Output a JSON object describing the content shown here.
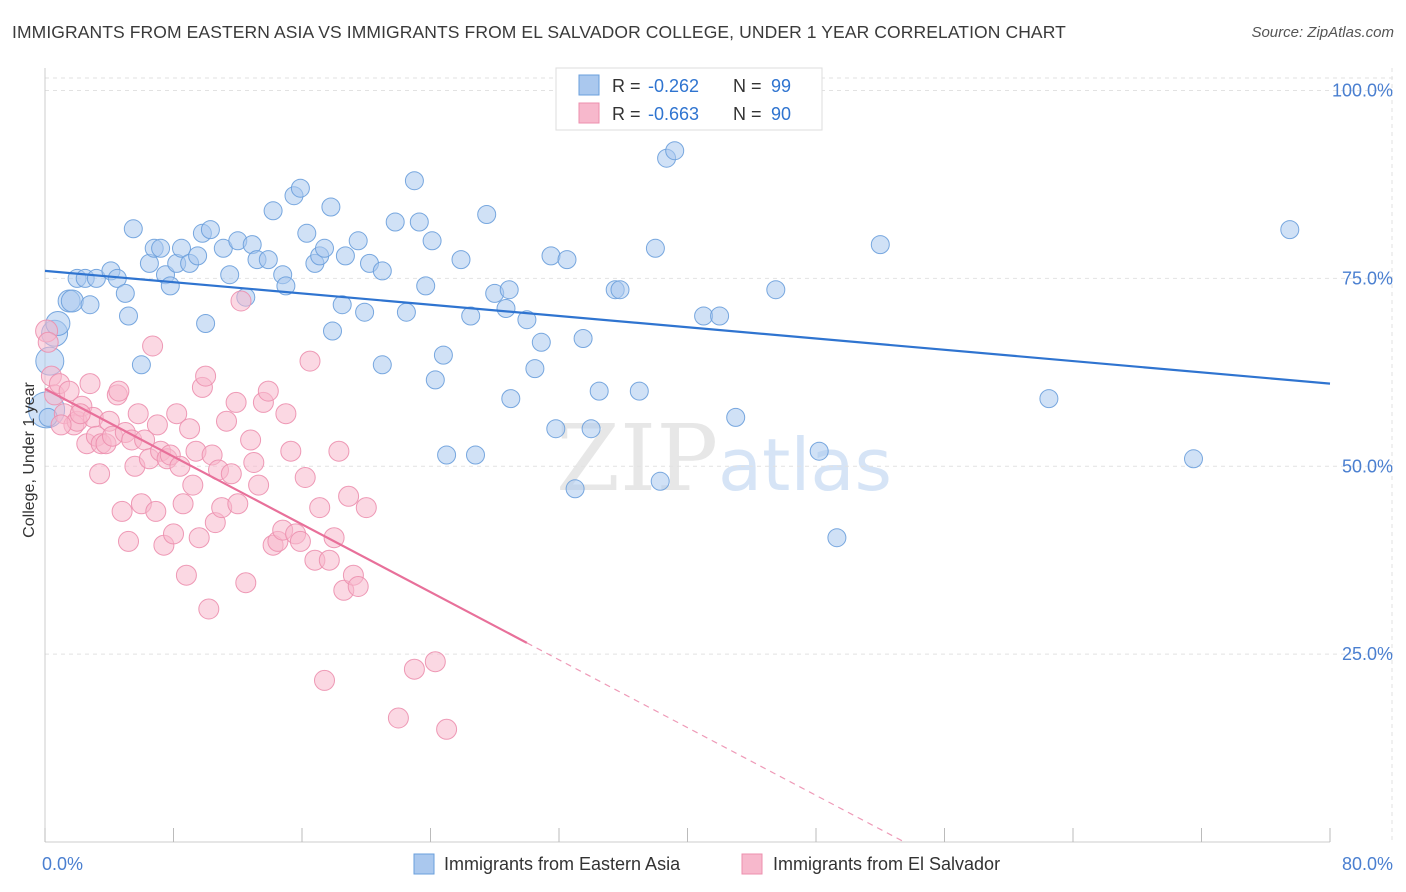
{
  "title": "IMMIGRANTS FROM EASTERN ASIA VS IMMIGRANTS FROM EL SALVADOR COLLEGE, UNDER 1 YEAR CORRELATION CHART",
  "source": "Source: ZipAtlas.com",
  "watermark": {
    "zip": "ZIP",
    "atlas": "atlas"
  },
  "colors": {
    "blue_fill": "#aac8ee",
    "blue_stroke": "#6a9fdc",
    "blue_line": "#2f74d0",
    "pink_fill": "#f7b8cc",
    "pink_stroke": "#ec8fae",
    "pink_line": "#e8709a",
    "axis_label": "#4a7fd0",
    "grid": "#e2e2e2"
  },
  "legend_top": [
    {
      "r_label": "R = ",
      "r_value": "-0.262",
      "n_label": "N = ",
      "n_value": "99"
    },
    {
      "r_label": "R = ",
      "r_value": "-0.663",
      "n_label": "N = ",
      "n_value": "90"
    }
  ],
  "chart_data": {
    "type": "scatter",
    "title": "IMMIGRANTS FROM EASTERN ASIA VS IMMIGRANTS FROM EL SALVADOR COLLEGE, UNDER 1 YEAR CORRELATION CHART",
    "xlabel": "",
    "ylabel": "College, Under 1 year",
    "xlim": [
      0,
      80
    ],
    "ylim": [
      0,
      103
    ],
    "x_tick_labels": [
      "0.0%",
      "80.0%"
    ],
    "y_tick_labels": [
      "25.0%",
      "50.0%",
      "75.0%",
      "100.0%"
    ],
    "y_ticks": [
      25,
      50,
      75,
      100
    ],
    "grid": true,
    "legend_position": "bottom-center",
    "series": [
      {
        "name": "Immigrants from Eastern Asia",
        "color": "#aac8ee",
        "trend": {
          "x": [
            0,
            80
          ],
          "y": [
            76.0,
            61.0
          ]
        },
        "points": [
          [
            0.1,
            57.5
          ],
          [
            0.3,
            64.0
          ],
          [
            0.6,
            67.7
          ],
          [
            0.8,
            69.0
          ],
          [
            1.5,
            72.0
          ],
          [
            1.7,
            72.0
          ],
          [
            2.0,
            75.0
          ],
          [
            2.5,
            75.0
          ],
          [
            3.2,
            75.0
          ],
          [
            4.1,
            76.0
          ],
          [
            4.5,
            75.0
          ],
          [
            5.0,
            73.0
          ],
          [
            5.2,
            70.0
          ],
          [
            5.5,
            81.6
          ],
          [
            6.0,
            63.5
          ],
          [
            6.5,
            77.0
          ],
          [
            6.8,
            79.0
          ],
          [
            7.2,
            79.0
          ],
          [
            7.5,
            75.5
          ],
          [
            7.8,
            74.0
          ],
          [
            8.2,
            77.0
          ],
          [
            8.5,
            79.0
          ],
          [
            9.0,
            77.0
          ],
          [
            9.5,
            78.0
          ],
          [
            9.8,
            81.0
          ],
          [
            10.3,
            81.5
          ],
          [
            10.0,
            69.0
          ],
          [
            11.1,
            79.0
          ],
          [
            11.5,
            75.5
          ],
          [
            12.0,
            80.0
          ],
          [
            12.5,
            72.5
          ],
          [
            12.9,
            79.5
          ],
          [
            13.2,
            77.5
          ],
          [
            13.9,
            77.5
          ],
          [
            14.2,
            84.0
          ],
          [
            14.8,
            75.5
          ],
          [
            15.0,
            74.0
          ],
          [
            15.5,
            86.0
          ],
          [
            15.9,
            87.0
          ],
          [
            16.3,
            81.0
          ],
          [
            16.8,
            77.0
          ],
          [
            17.1,
            78.0
          ],
          [
            17.4,
            79.0
          ],
          [
            17.8,
            84.5
          ],
          [
            17.9,
            68.0
          ],
          [
            18.7,
            78.0
          ],
          [
            18.5,
            71.5
          ],
          [
            19.5,
            80.0
          ],
          [
            19.9,
            70.5
          ],
          [
            20.2,
            77.0
          ],
          [
            21.0,
            76.0
          ],
          [
            21.0,
            63.5
          ],
          [
            21.8,
            82.5
          ],
          [
            22.5,
            70.5
          ],
          [
            23.0,
            88.0
          ],
          [
            23.3,
            82.5
          ],
          [
            23.7,
            74.0
          ],
          [
            24.1,
            80.0
          ],
          [
            24.3,
            61.5
          ],
          [
            24.8,
            64.8
          ],
          [
            25.0,
            51.5
          ],
          [
            25.9,
            77.5
          ],
          [
            26.5,
            70.0
          ],
          [
            26.8,
            51.5
          ],
          [
            27.5,
            83.5
          ],
          [
            28.0,
            73.0
          ],
          [
            28.7,
            71.0
          ],
          [
            28.9,
            73.5
          ],
          [
            29.0,
            59.0
          ],
          [
            30.0,
            69.5
          ],
          [
            30.5,
            63.0
          ],
          [
            30.9,
            66.5
          ],
          [
            31.5,
            78.0
          ],
          [
            31.8,
            55.0
          ],
          [
            32.5,
            77.5
          ],
          [
            33.0,
            47.0
          ],
          [
            33.5,
            67.0
          ],
          [
            34.0,
            55.0
          ],
          [
            34.5,
            60.0
          ],
          [
            35.5,
            73.5
          ],
          [
            35.8,
            73.5
          ],
          [
            37.0,
            60.0
          ],
          [
            38.0,
            79.0
          ],
          [
            38.3,
            48.0
          ],
          [
            38.7,
            91.0
          ],
          [
            39.2,
            92.0
          ],
          [
            40.3,
            96.5
          ],
          [
            41.0,
            70.0
          ],
          [
            42.0,
            70.0
          ],
          [
            43.0,
            56.5
          ],
          [
            45.5,
            73.5
          ],
          [
            48.2,
            52.0
          ],
          [
            49.3,
            40.5
          ],
          [
            52.0,
            79.5
          ],
          [
            62.5,
            59.0
          ],
          [
            71.5,
            51.0
          ],
          [
            77.5,
            81.5
          ],
          [
            0.2,
            56.5
          ],
          [
            2.8,
            71.5
          ]
        ],
        "sizes": [
          18,
          14,
          13,
          12,
          11,
          11,
          9,
          9,
          9,
          9,
          9,
          9,
          9,
          9,
          9,
          9,
          9,
          9,
          9,
          9,
          9,
          9,
          9,
          9,
          9,
          9,
          9,
          9,
          9,
          9,
          9,
          9,
          9,
          9,
          9,
          9,
          9,
          9,
          9,
          9,
          9,
          9,
          9,
          9,
          9,
          9,
          9,
          9,
          9,
          9,
          9,
          9,
          9,
          9,
          9,
          9,
          9,
          9,
          9,
          9,
          9,
          9,
          9,
          9,
          9,
          9,
          9,
          9,
          9,
          9,
          9,
          9,
          9,
          9,
          9,
          9,
          9,
          9,
          9,
          9,
          9,
          9,
          9,
          9,
          9,
          9,
          9,
          9,
          9,
          9,
          9,
          9,
          9,
          9,
          9,
          9,
          9,
          9,
          9,
          11
        ]
      },
      {
        "name": "Immigrants from El Salvador",
        "color": "#f7b8cc",
        "trend": {
          "x": [
            0,
            30
          ],
          "y": [
            60.3,
            26.5
          ],
          "dashed_to": {
            "x": 53.5,
            "y": 0
          }
        },
        "points": [
          [
            0.1,
            68.0
          ],
          [
            0.2,
            66.5
          ],
          [
            0.4,
            62.0
          ],
          [
            0.6,
            59.5
          ],
          [
            0.9,
            61.0
          ],
          [
            1.2,
            57.0
          ],
          [
            1.5,
            60.0
          ],
          [
            1.8,
            55.5
          ],
          [
            2.0,
            56.0
          ],
          [
            2.3,
            58.0
          ],
          [
            2.6,
            53.0
          ],
          [
            2.8,
            61.0
          ],
          [
            3.0,
            56.5
          ],
          [
            3.2,
            54.0
          ],
          [
            3.4,
            49.0
          ],
          [
            3.5,
            53.0
          ],
          [
            3.8,
            53.0
          ],
          [
            4.0,
            56.0
          ],
          [
            4.2,
            54.0
          ],
          [
            4.5,
            59.5
          ],
          [
            4.6,
            60.0
          ],
          [
            4.8,
            44.0
          ],
          [
            5.0,
            54.5
          ],
          [
            5.2,
            40.0
          ],
          [
            5.4,
            53.5
          ],
          [
            5.6,
            50.0
          ],
          [
            5.8,
            57.0
          ],
          [
            6.0,
            45.0
          ],
          [
            6.2,
            53.5
          ],
          [
            6.5,
            51.0
          ],
          [
            6.7,
            66.0
          ],
          [
            6.9,
            44.0
          ],
          [
            7.0,
            55.5
          ],
          [
            7.2,
            52.0
          ],
          [
            7.4,
            39.5
          ],
          [
            7.6,
            51.0
          ],
          [
            7.8,
            51.5
          ],
          [
            8.0,
            41.0
          ],
          [
            8.2,
            57.0
          ],
          [
            8.4,
            50.0
          ],
          [
            8.6,
            45.0
          ],
          [
            8.8,
            35.5
          ],
          [
            9.0,
            55.0
          ],
          [
            9.2,
            47.5
          ],
          [
            9.4,
            52.0
          ],
          [
            9.6,
            40.5
          ],
          [
            9.8,
            60.5
          ],
          [
            10.0,
            62.0
          ],
          [
            10.2,
            31.0
          ],
          [
            10.4,
            51.5
          ],
          [
            10.6,
            42.5
          ],
          [
            10.8,
            49.5
          ],
          [
            11.0,
            44.5
          ],
          [
            11.3,
            56.0
          ],
          [
            11.6,
            49.0
          ],
          [
            11.9,
            58.5
          ],
          [
            12.0,
            45.0
          ],
          [
            12.2,
            72.0
          ],
          [
            12.5,
            34.5
          ],
          [
            12.8,
            53.5
          ],
          [
            13.0,
            50.5
          ],
          [
            13.3,
            47.5
          ],
          [
            13.6,
            58.5
          ],
          [
            13.9,
            60.0
          ],
          [
            14.2,
            39.5
          ],
          [
            14.5,
            40.0
          ],
          [
            14.8,
            41.5
          ],
          [
            15.0,
            57.0
          ],
          [
            15.3,
            52.0
          ],
          [
            15.6,
            41.0
          ],
          [
            15.9,
            40.0
          ],
          [
            16.2,
            48.5
          ],
          [
            16.5,
            64.0
          ],
          [
            16.8,
            37.5
          ],
          [
            17.1,
            44.5
          ],
          [
            17.4,
            21.5
          ],
          [
            17.7,
            37.5
          ],
          [
            18.0,
            40.5
          ],
          [
            18.3,
            52.0
          ],
          [
            18.6,
            33.5
          ],
          [
            18.9,
            46.0
          ],
          [
            19.2,
            35.5
          ],
          [
            19.5,
            34.0
          ],
          [
            20.0,
            44.5
          ],
          [
            22.0,
            16.5
          ],
          [
            23.0,
            23.0
          ],
          [
            24.3,
            24.0
          ],
          [
            25.0,
            15.0
          ],
          [
            1.0,
            55.5
          ],
          [
            2.2,
            57.0
          ]
        ],
        "sizes": [
          11,
          10,
          10,
          10,
          10,
          10,
          10,
          10,
          10,
          10,
          10,
          10,
          10,
          10,
          10,
          10,
          10,
          10,
          10,
          10,
          10,
          10,
          10,
          10,
          10,
          10,
          10,
          10,
          10,
          10,
          10,
          10,
          10,
          10,
          10,
          10,
          10,
          10,
          10,
          10,
          10,
          10,
          10,
          10,
          10,
          10,
          10,
          10,
          10,
          10,
          10,
          10,
          10,
          10,
          10,
          10,
          10,
          10,
          10,
          10,
          10,
          10,
          10,
          10,
          10,
          10,
          10,
          10,
          10,
          10,
          10,
          10,
          10,
          10,
          10,
          10,
          10,
          10,
          10,
          10,
          10,
          10,
          10,
          10,
          10,
          10,
          10,
          10,
          10,
          10
        ]
      }
    ]
  }
}
